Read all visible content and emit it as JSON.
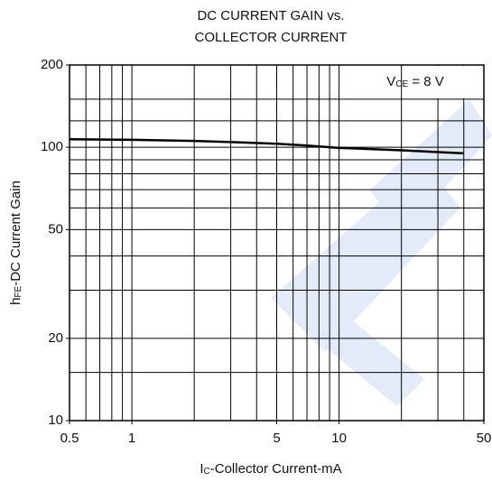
{
  "chart_data": {
    "type": "line",
    "title": [
      "DC CURRENT GAIN vs.",
      "COLLECTOR CURRENT"
    ],
    "x_label": [
      "I",
      "C",
      "-Collector Current-mA"
    ],
    "y_label": [
      "h",
      "FE",
      "-DC Current Gain"
    ],
    "annotation": [
      "V",
      "CE",
      " = 8 V"
    ],
    "xscale": "log",
    "yscale": "log",
    "xlim": [
      0.5,
      50
    ],
    "ylim": [
      10,
      200
    ],
    "xticks": [
      0.5,
      1,
      5,
      10,
      50
    ],
    "yticks": [
      10,
      20,
      50,
      100,
      200
    ],
    "xminor": [
      0.6,
      0.7,
      0.8,
      0.9,
      2,
      3,
      4,
      6,
      7,
      8,
      9,
      20,
      30,
      40
    ],
    "yminor": [
      15,
      30,
      40,
      60,
      70,
      80,
      90,
      125,
      150
    ],
    "grid": true,
    "series": [
      {
        "color": "#000000",
        "x": [
          0.5,
          1,
          2,
          3,
          5,
          7,
          10,
          20,
          30,
          40
        ],
        "values": [
          107,
          106.5,
          105.5,
          104.5,
          103,
          101.5,
          99.5,
          97.5,
          96,
          95
        ]
      }
    ]
  }
}
